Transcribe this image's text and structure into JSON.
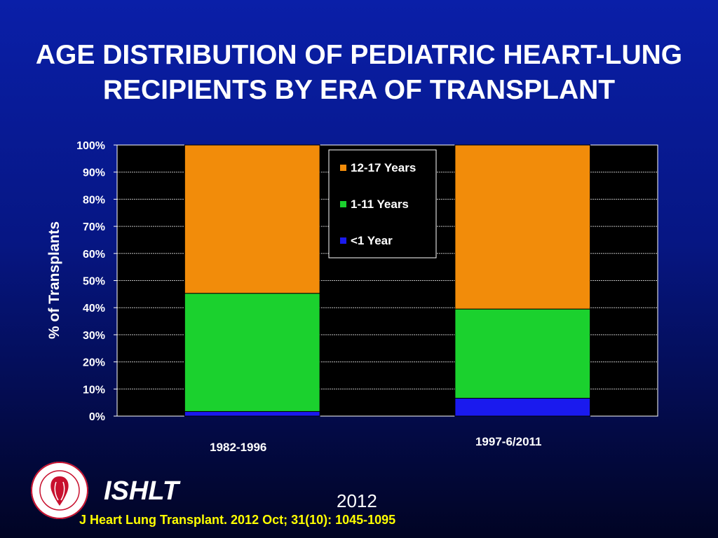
{
  "title_lines": [
    "AGE DISTRIBUTION OF PEDIATRIC HEART-LUNG",
    "RECIPIENTS BY ERA OF TRANSPLANT"
  ],
  "footer": {
    "org": "ISHLT",
    "year": "2012",
    "citation": "J Heart Lung Transplant.  2012 Oct; 31(10): 1045-1095"
  },
  "colors": {
    "plot_background": "#000000",
    "text": "#ffffff",
    "citation": "#ffff00"
  },
  "chart_data": {
    "type": "bar",
    "stacked": true,
    "percent": true,
    "categories": [
      "1982-1996",
      "1997-6/2011"
    ],
    "series": [
      {
        "name": "<1 Year",
        "values": [
          1.7,
          6.6
        ],
        "color": "#1a1aee"
      },
      {
        "name": "1-11 Years",
        "values": [
          43.6,
          32.9
        ],
        "color": "#1bd12e"
      },
      {
        "name": "12-17 Years",
        "values": [
          54.7,
          60.5
        ],
        "color": "#f28c0a"
      }
    ],
    "legend_order": [
      "12-17 Years",
      "1-11 Years",
      "<1 Year"
    ],
    "title": "",
    "xlabel": "",
    "ylabel": "% of Transplants",
    "ylim": [
      0,
      100
    ],
    "yticks": [
      "0%",
      "10%",
      "20%",
      "30%",
      "40%",
      "50%",
      "60%",
      "70%",
      "80%",
      "90%",
      "100%"
    ],
    "grid": true,
    "legend_position": "top-center"
  }
}
